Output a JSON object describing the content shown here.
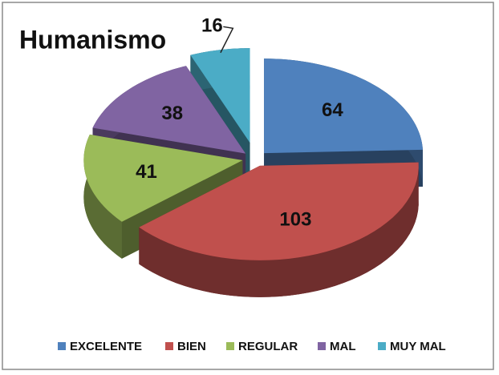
{
  "chart_data": {
    "type": "pie3d",
    "title": "Humanismo",
    "categories": [
      "EXCELENTE",
      "BIEN",
      "REGULAR",
      "MAL",
      "MUY MAL"
    ],
    "values": [
      64,
      103,
      41,
      38,
      16
    ],
    "colors": [
      "#4f81bd",
      "#c0504d",
      "#9bbb59",
      "#8064a2",
      "#4bacc6"
    ],
    "legend": "bottom"
  }
}
